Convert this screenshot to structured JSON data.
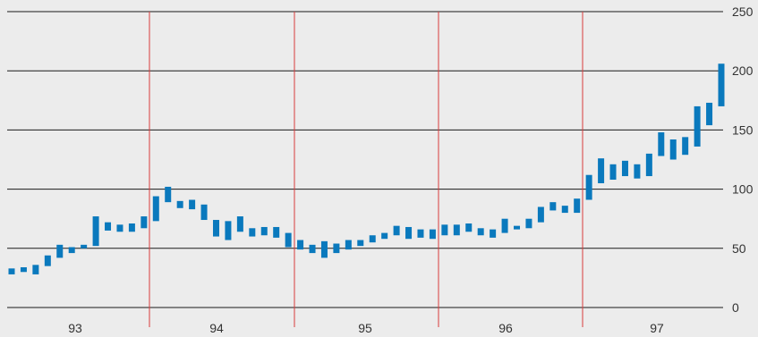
{
  "chart_data": {
    "type": "bar",
    "subtype": "floating-range",
    "title": "",
    "xlabel": "",
    "ylabel": "",
    "ylim": [
      0,
      250
    ],
    "y_ticks": [
      0,
      50,
      100,
      150,
      200,
      250
    ],
    "y_axis_side": "right",
    "grid": "horizontal",
    "x_groups": [
      "93",
      "94",
      "95",
      "96",
      "97"
    ],
    "colors": {
      "bar": "#0a79bd",
      "separator": "#d83c3c",
      "grid": "#1a1a1a",
      "background": "#ececec",
      "text": "#333333"
    },
    "series": [
      {
        "ranges": [
          [
            28,
            33
          ],
          [
            30,
            34
          ],
          [
            28,
            36
          ],
          [
            35,
            44
          ],
          [
            42,
            53
          ],
          [
            46,
            51
          ],
          [
            50,
            53
          ],
          [
            52,
            77
          ],
          [
            65,
            72
          ],
          [
            64,
            70
          ],
          [
            64,
            71
          ],
          [
            67,
            77
          ],
          [
            73,
            94
          ],
          [
            89,
            102
          ],
          [
            84,
            90
          ],
          [
            83,
            91
          ],
          [
            74,
            87
          ],
          [
            60,
            74
          ],
          [
            57,
            73
          ],
          [
            64,
            77
          ],
          [
            60,
            67
          ],
          [
            61,
            68
          ],
          [
            59,
            68
          ],
          [
            51,
            63
          ],
          [
            49,
            57
          ],
          [
            46,
            53
          ],
          [
            42,
            56
          ],
          [
            46,
            54
          ],
          [
            49,
            57
          ],
          [
            52,
            57
          ],
          [
            55,
            61
          ],
          [
            58,
            63
          ],
          [
            61,
            69
          ],
          [
            58,
            68
          ],
          [
            59,
            66
          ],
          [
            58,
            66
          ],
          [
            61,
            70
          ],
          [
            61,
            70
          ],
          [
            64,
            71
          ],
          [
            61,
            67
          ],
          [
            59,
            66
          ],
          [
            63,
            75
          ],
          [
            66,
            69
          ],
          [
            67,
            75
          ],
          [
            72,
            85
          ],
          [
            82,
            89
          ],
          [
            80,
            86
          ],
          [
            80,
            92
          ],
          [
            91,
            112
          ],
          [
            105,
            126
          ],
          [
            108,
            121
          ],
          [
            111,
            124
          ],
          [
            109,
            121
          ],
          [
            111,
            130
          ],
          [
            128,
            148
          ],
          [
            125,
            142
          ],
          [
            129,
            144
          ],
          [
            136,
            170
          ],
          [
            154,
            173
          ],
          [
            170,
            206
          ]
        ]
      }
    ]
  }
}
